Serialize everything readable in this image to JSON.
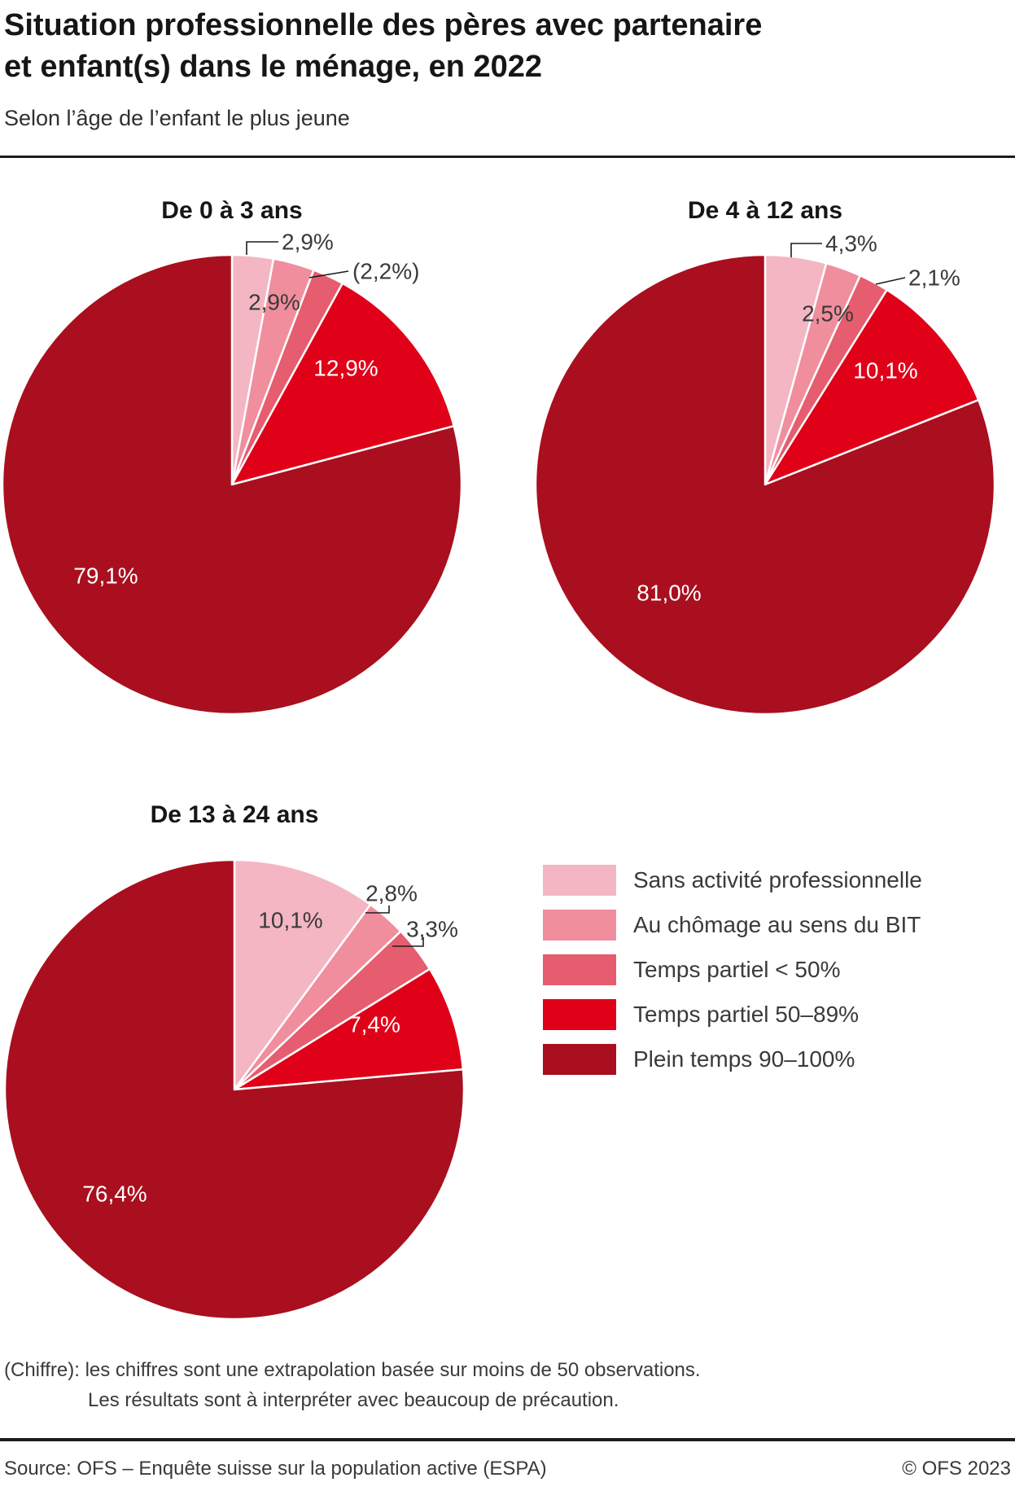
{
  "header": {
    "title_line1": "Situation professionnelle des pères avec partenaire",
    "title_line2": "et enfant(s) dans le ménage, en 2022",
    "subtitle": "Selon l’âge de l’enfant le plus jeune"
  },
  "chart_data": [
    {
      "type": "pie",
      "title": "De 0 à 3 ans",
      "categories": [
        "Sans activité professionnelle",
        "Au chômage au sens du BIT",
        "Temps partiel < 50%",
        "Temps partiel 50–89%",
        "Plein temps 90–100%"
      ],
      "values": [
        2.9,
        2.9,
        2.2,
        12.9,
        79.1
      ],
      "value_labels": [
        "2,9%",
        "2,9%",
        "(2,2%)",
        "12,9%",
        "79,1%"
      ]
    },
    {
      "type": "pie",
      "title": "De 4 à 12 ans",
      "categories": [
        "Sans activité professionnelle",
        "Au chômage au sens du BIT",
        "Temps partiel < 50%",
        "Temps partiel 50–89%",
        "Plein temps 90–100%"
      ],
      "values": [
        4.3,
        2.5,
        2.1,
        10.1,
        81.0
      ],
      "value_labels": [
        "4,3%",
        "2,5%",
        "2,1%",
        "10,1%",
        "81,0%"
      ]
    },
    {
      "type": "pie",
      "title": "De 13 à 24 ans",
      "categories": [
        "Sans activité professionnelle",
        "Au chômage au sens du BIT",
        "Temps partiel < 50%",
        "Temps partiel 50–89%",
        "Plein temps 90–100%"
      ],
      "values": [
        10.1,
        2.8,
        3.3,
        7.4,
        76.4
      ],
      "value_labels": [
        "10,1%",
        "2,8%",
        "3,3%",
        "7,4%",
        "76,4%"
      ]
    }
  ],
  "legend": {
    "items": [
      {
        "label": "Sans activité professionnelle",
        "color": "#f4b6c3"
      },
      {
        "label": "Au chômage au sens du BIT",
        "color": "#f08e9e"
      },
      {
        "label": "Temps partiel < 50%",
        "color": "#e55d6e"
      },
      {
        "label": "Temps partiel 50–89%",
        "color": "#e00018"
      },
      {
        "label": "Plein temps 90–100%",
        "color": "#a90f1e"
      }
    ]
  },
  "footnote": {
    "line1": "(Chiffre): les chiffres sont une extrapolation basée sur moins de 50 observations.",
    "line2": "Les résultats sont à interpréter avec beaucoup de précaution."
  },
  "source": {
    "left": "Source: OFS – Enquête suisse sur la population active (ESPA)",
    "right": "© OFS 2023"
  }
}
